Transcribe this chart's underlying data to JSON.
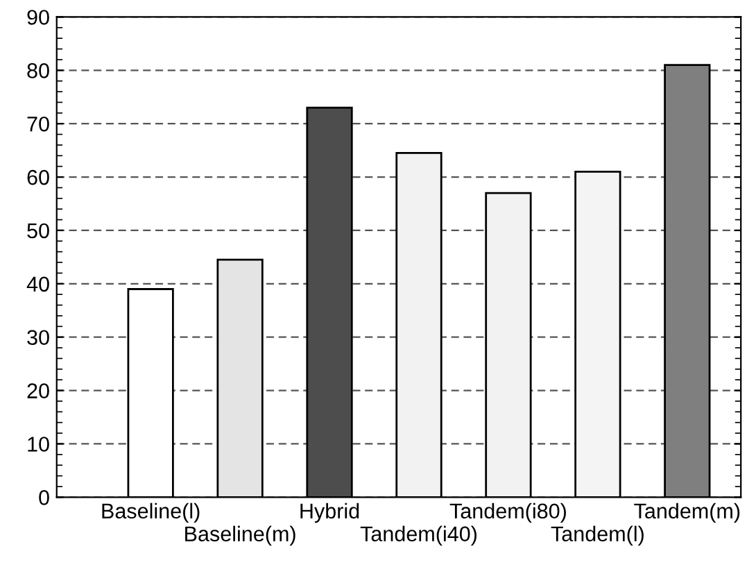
{
  "chart_data": {
    "type": "bar",
    "categories": [
      "Baseline(l)",
      "Baseline(m)",
      "Hybrid",
      "Tandem(i40)",
      "Tandem(i80)",
      "Tandem(l)",
      "Tandem(m)"
    ],
    "values": [
      39,
      44.5,
      73,
      64.5,
      57,
      61,
      81
    ],
    "colors": [
      "#ffffff",
      "#e4e4e4",
      "#4d4d4d",
      "#f2f2f2",
      "#f2f2f2",
      "#f4f4f4",
      "#7f7f7f"
    ],
    "ylim": [
      0,
      90
    ],
    "yticks": [
      0,
      10,
      20,
      30,
      40,
      50,
      60,
      70,
      80,
      90
    ],
    "grid": "y"
  }
}
